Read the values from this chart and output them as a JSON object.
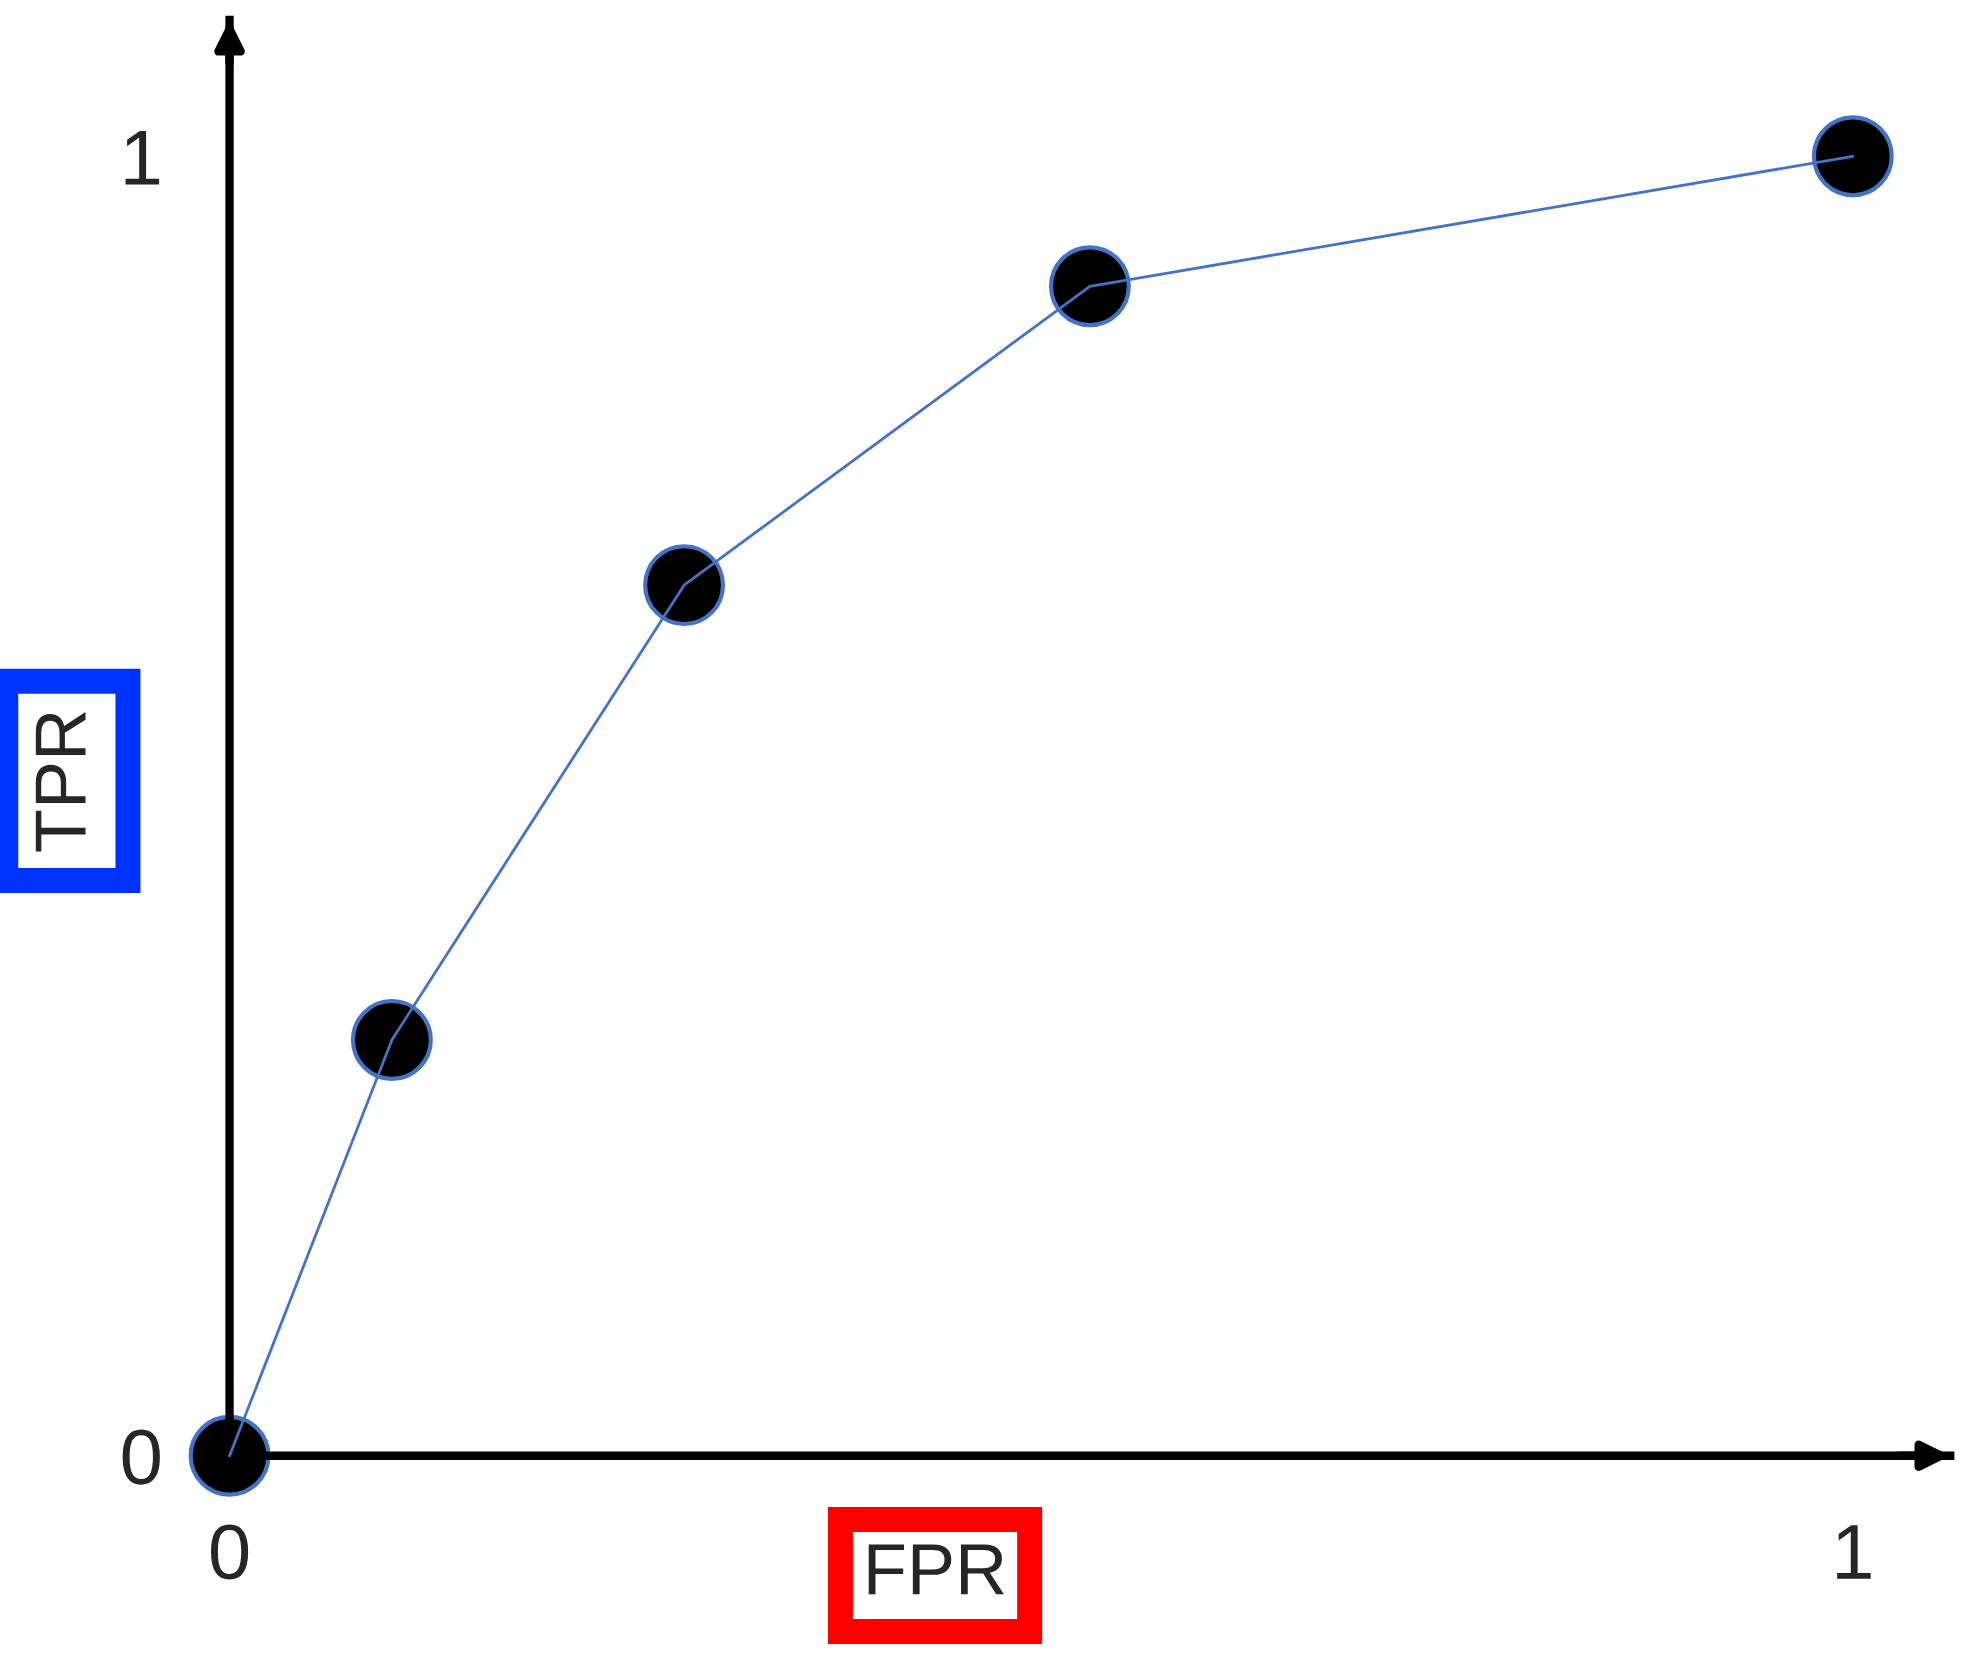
{
  "chart_data": {
    "type": "line",
    "xlabel": "FPR",
    "ylabel": "TPR",
    "x": [
      0,
      0.1,
      0.28,
      0.53,
      1
    ],
    "series": [
      {
        "color": "#4472c4",
        "values": [
          0,
          0.32,
          0.67,
          0.9,
          1
        ]
      }
    ],
    "marker": "circle",
    "line_style": "solid",
    "xlim": [
      0,
      1.06
    ],
    "ylim": [
      0,
      1.105
    ],
    "xticks": [
      0,
      1
    ],
    "yticks": [
      0,
      1
    ],
    "grid": false,
    "legend": false
  }
}
